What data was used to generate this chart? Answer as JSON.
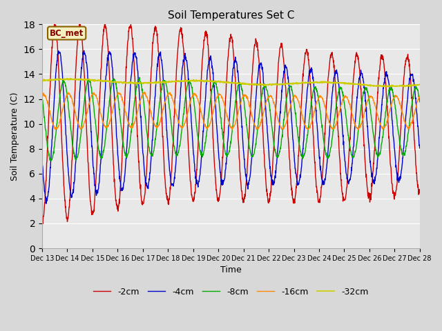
{
  "title": "Soil Temperatures Set C",
  "xlabel": "Time",
  "ylabel": "Soil Temperature (C)",
  "ylim": [
    0,
    18
  ],
  "yticks": [
    0,
    2,
    4,
    6,
    8,
    10,
    12,
    14,
    16,
    18
  ],
  "annotation": "BC_met",
  "fig_bg_color": "#d8d8d8",
  "plot_bg_color": "#e8e8e8",
  "line_colors": {
    "-2cm": "#cc0000",
    "-4cm": "#0000cc",
    "-8cm": "#00aa00",
    "-16cm": "#ff8800",
    "-32cm": "#cccc00"
  },
  "legend_labels": [
    "-2cm",
    "-4cm",
    "-8cm",
    "-16cm",
    "-32cm"
  ]
}
